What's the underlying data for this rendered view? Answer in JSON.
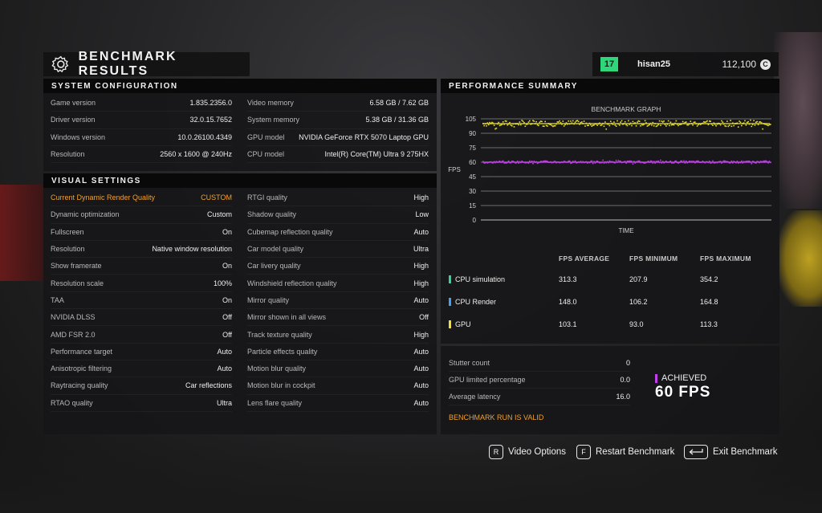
{
  "title": "BENCHMARK RESULTS",
  "user": {
    "level": "17",
    "name": "hisan25",
    "credits": "112,100",
    "credit_symbol": "C"
  },
  "system_config": {
    "header": "SYSTEM CONFIGURATION",
    "left": [
      {
        "label": "Game version",
        "value": "1.835.2356.0"
      },
      {
        "label": "Driver version",
        "value": "32.0.15.7652"
      },
      {
        "label": "Windows version",
        "value": "10.0.26100.4349"
      },
      {
        "label": "Resolution",
        "value": "2560 x 1600 @ 240Hz"
      }
    ],
    "right": [
      {
        "label": "Video memory",
        "value": "6.58 GB / 7.62 GB"
      },
      {
        "label": "System memory",
        "value": "5.38 GB / 31.36 GB"
      },
      {
        "label": "GPU model",
        "value": "NVIDIA GeForce RTX 5070 Laptop GPU"
      },
      {
        "label": "CPU model",
        "value": "Intel(R) Core(TM) Ultra 9 275HX"
      }
    ]
  },
  "visual_settings": {
    "header": "VISUAL SETTINGS",
    "left": [
      {
        "label": "Current Dynamic Render Quality",
        "value": "CUSTOM"
      },
      {
        "label": "Dynamic optimization",
        "value": "Custom"
      },
      {
        "label": "Fullscreen",
        "value": "On"
      },
      {
        "label": "Resolution",
        "value": "Native window resolution"
      },
      {
        "label": "Show framerate",
        "value": "On"
      },
      {
        "label": "Resolution scale",
        "value": "100%"
      },
      {
        "label": "TAA",
        "value": "On"
      },
      {
        "label": "NVIDIA DLSS",
        "value": "Off"
      },
      {
        "label": "AMD FSR 2.0",
        "value": "Off"
      },
      {
        "label": "Performance target",
        "value": "Auto"
      },
      {
        "label": "Anisotropic filtering",
        "value": "Auto"
      },
      {
        "label": "Raytracing quality",
        "value": "Car reflections"
      },
      {
        "label": "RTAO quality",
        "value": "Ultra"
      }
    ],
    "right": [
      {
        "label": "RTGI quality",
        "value": "High"
      },
      {
        "label": "Shadow quality",
        "value": "Low"
      },
      {
        "label": "Cubemap reflection quality",
        "value": "Auto"
      },
      {
        "label": "Car model quality",
        "value": "Ultra"
      },
      {
        "label": "Car livery quality",
        "value": "High"
      },
      {
        "label": "Windshield reflection quality",
        "value": "High"
      },
      {
        "label": "Mirror quality",
        "value": "Auto"
      },
      {
        "label": "Mirror shown in all views",
        "value": "Off"
      },
      {
        "label": "Track texture quality",
        "value": "High"
      },
      {
        "label": "Particle effects quality",
        "value": "Auto"
      },
      {
        "label": "Motion blur quality",
        "value": "Auto"
      },
      {
        "label": "Motion blur in cockpit",
        "value": "Auto"
      },
      {
        "label": "Lens flare quality",
        "value": "Auto"
      }
    ]
  },
  "performance": {
    "header": "PERFORMANCE SUMMARY",
    "columns": [
      "FPS AVERAGE",
      "FPS MINIMUM",
      "FPS MAXIMUM"
    ],
    "rows": [
      {
        "label": "CPU simulation",
        "color": "#2fd69a",
        "avg": "313.3",
        "min": "207.9",
        "max": "354.2"
      },
      {
        "label": "CPU Render",
        "color": "#4aa0e8",
        "avg": "148.0",
        "min": "106.2",
        "max": "164.8"
      },
      {
        "label": "GPU",
        "color": "#f0e030",
        "avg": "103.1",
        "min": "93.0",
        "max": "113.3"
      }
    ]
  },
  "chart_data": {
    "type": "scatter",
    "title": "BENCHMARK GRAPH",
    "xlabel": "TIME",
    "ylabel": "FPS",
    "ylim": [
      0,
      105
    ],
    "yticks": [
      "0",
      "15",
      "30",
      "45",
      "60",
      "75",
      "90",
      "105"
    ],
    "grid": true,
    "series": [
      {
        "color": "#e8e030",
        "level": 100,
        "spread_min": 93,
        "spread_max": 104
      },
      {
        "color": "#c040e8",
        "level": 60,
        "spread_min": 58,
        "spread_max": 62
      }
    ]
  },
  "stats": {
    "stutter_count_label": "Stutter count",
    "stutter_count": "0",
    "gpu_limited_label": "GPU limited percentage",
    "gpu_limited": "0.0",
    "avg_latency_label": "Average latency",
    "avg_latency": "16.0",
    "valid_text": "BENCHMARK RUN IS VALID",
    "achieved_label": "ACHIEVED",
    "achieved_value": "60 FPS"
  },
  "footer": {
    "video_key": "R",
    "video_label": "Video Options",
    "restart_key": "F",
    "restart_label": "Restart Benchmark",
    "exit_label": "Exit Benchmark"
  }
}
